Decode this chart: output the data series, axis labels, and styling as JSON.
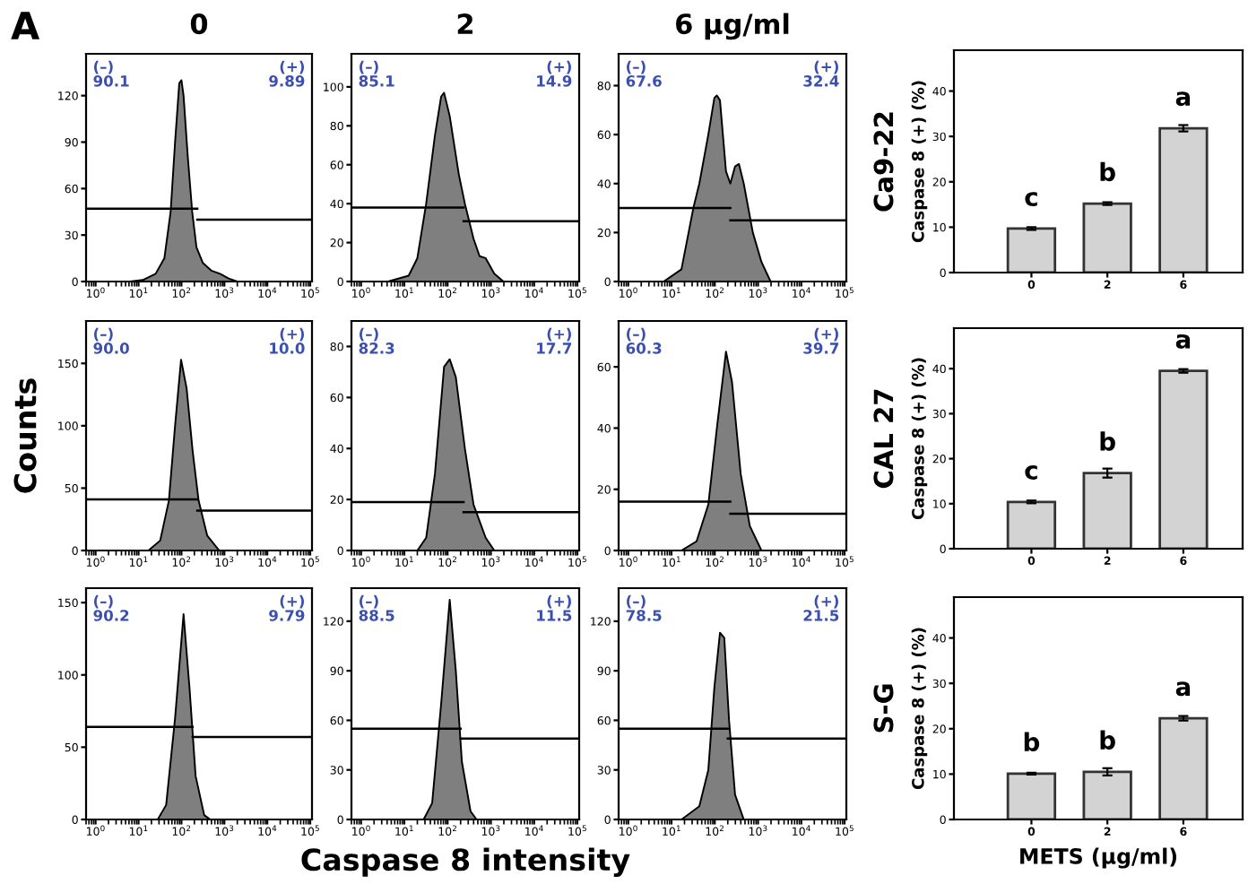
{
  "chart_data": [
    {
      "type": "area",
      "title": "0",
      "log": "x",
      "xlim": [
        0.6,
        110000
      ],
      "ylim": [
        0,
        147
      ],
      "xticks": [
        {
          "value": 1,
          "label": "10$^{0}$"
        },
        {
          "value": 10,
          "label": "10$^{1}$"
        },
        {
          "value": 100,
          "label": "10$^{2}$"
        },
        {
          "value": 1000,
          "label": "10$^{3}$"
        },
        {
          "value": 10000,
          "label": "10$^{4}$"
        },
        {
          "value": 100000,
          "label": "10$^{5}$"
        }
      ],
      "yticks": [
        0,
        30,
        60,
        90,
        120
      ],
      "annotations": [
        "(–)\n90.1",
        "(+)\n9.89",
        "A"
      ],
      "series": [
        {
          "type": "area",
          "color": "#7f7f7f",
          "x": [
            6.3,
            12.6,
            25,
            40,
            56,
            71,
            89,
            100,
            112,
            141,
            178,
            224,
            316,
            501,
            794,
            1259,
            1995
          ],
          "values": [
            0,
            1,
            5,
            15,
            45,
            90,
            128,
            130,
            120,
            80,
            45,
            22,
            12,
            7,
            5,
            2,
            0
          ]
        },
        {
          "type": "line",
          "color": "#000000",
          "x": [
            0.6,
            234
          ],
          "values": [
            47,
            47
          ]
        },
        {
          "type": "line",
          "color": "#000000",
          "x": [
            234,
            110000
          ],
          "values": [
            40,
            40
          ]
        }
      ]
    },
    {
      "type": "area",
      "title": "2",
      "log": "x",
      "xlim": [
        0.6,
        110000
      ],
      "ylim": [
        0,
        117
      ],
      "xticks": [
        {
          "value": 1,
          "label": "10$^{0}$"
        },
        {
          "value": 10,
          "label": "10$^{1}$"
        },
        {
          "value": 100,
          "label": "10$^{2}$"
        },
        {
          "value": 1000,
          "label": "10$^{3}$"
        },
        {
          "value": 10000,
          "label": "10$^{4}$"
        },
        {
          "value": 100000,
          "label": "10$^{5}$"
        }
      ],
      "yticks": [
        0,
        20,
        40,
        60,
        80,
        100
      ],
      "annotations": [
        "(–)\n85.1",
        "(+)\n14.9"
      ],
      "series": [
        {
          "type": "area",
          "color": "#7f7f7f",
          "x": [
            4.2,
            12.6,
            20,
            32,
            51,
            71,
            83,
            112,
            182,
            251,
            398,
            550,
            759,
            1202,
            1950
          ],
          "values": [
            0,
            3,
            12,
            40,
            75,
            95,
            97,
            85,
            55,
            40,
            22,
            13,
            12,
            4,
            0
          ]
        },
        {
          "type": "line",
          "color": "#000000",
          "x": [
            0.6,
            234
          ],
          "values": [
            38,
            38
          ]
        },
        {
          "type": "line",
          "color": "#000000",
          "x": [
            234,
            110000
          ],
          "values": [
            31,
            31
          ]
        }
      ]
    },
    {
      "type": "area",
      "title": "6 μg/ml",
      "log": "x",
      "xlim": [
        0.6,
        110000
      ],
      "ylim": [
        0,
        93
      ],
      "xticks": [
        {
          "value": 1,
          "label": "10$^{0}$"
        },
        {
          "value": 10,
          "label": "10$^{1}$"
        },
        {
          "value": 100,
          "label": "10$^{2}$"
        },
        {
          "value": 1000,
          "label": "10$^{3}$"
        },
        {
          "value": 10000,
          "label": "10$^{4}$"
        },
        {
          "value": 100000,
          "label": "10$^{5}$"
        }
      ],
      "yticks": [
        0,
        20,
        40,
        60,
        80
      ],
      "annotations": [
        "(–)\n67.6",
        "(+)\n32.4"
      ],
      "series": [
        {
          "type": "area",
          "color": "#7f7f7f",
          "x": [
            6.6,
            17,
            32,
            44,
            71,
            98,
            112,
            132,
            182,
            229,
            295,
            363,
            468,
            759,
            1202,
            1950
          ],
          "values": [
            0,
            5,
            30,
            40,
            60,
            75,
            76,
            74,
            45,
            40,
            47,
            48,
            40,
            20,
            8,
            0
          ]
        },
        {
          "type": "line",
          "color": "#000000",
          "x": [
            0.6,
            229
          ],
          "values": [
            30,
            30
          ]
        },
        {
          "type": "line",
          "color": "#000000",
          "x": [
            229,
            110000
          ],
          "values": [
            25,
            25
          ]
        }
      ]
    },
    {
      "type": "bar",
      "categories": [
        "0",
        "2",
        "6"
      ],
      "values": [
        9.7,
        15.2,
        31.8
      ],
      "errors": [
        0.3,
        0.3,
        0.7
      ],
      "color": "#d3d3d3",
      "ylabel": "Caspase 8 (+) (%)",
      "ylim": [
        0,
        49
      ],
      "yticks": [
        0,
        10,
        20,
        30,
        40
      ],
      "annotations": [
        "Ca9-22",
        {
          "text": "c",
          "x": "0",
          "y": 9.7
        },
        {
          "text": "b",
          "x": "2",
          "y": 15.2
        },
        {
          "text": "a",
          "x": "6",
          "y": 31.8
        }
      ]
    },
    {
      "type": "area",
      "ylabel": "Counts",
      "log": "x",
      "xlim": [
        0.6,
        110000
      ],
      "ylim": [
        0,
        184
      ],
      "xticks": [
        {
          "value": 1,
          "label": "10$^{0}$"
        },
        {
          "value": 10,
          "label": "10$^{1}$"
        },
        {
          "value": 100,
          "label": "10$^{2}$"
        },
        {
          "value": 1000,
          "label": "10$^{3}$"
        },
        {
          "value": 10000,
          "label": "10$^{4}$"
        },
        {
          "value": 100000,
          "label": "10$^{5}$"
        }
      ],
      "yticks": [
        0,
        50,
        100,
        150
      ],
      "annotations": [
        "(–)\n90.0",
        "(+)\n10.0"
      ],
      "series": [
        {
          "type": "area",
          "color": "#7f7f7f",
          "x": [
            17,
            32,
            51,
            71,
            98,
            132,
            182,
            251,
            398,
            759
          ],
          "values": [
            0,
            8,
            40,
            100,
            153,
            130,
            80,
            40,
            12,
            0
          ]
        },
        {
          "type": "line",
          "color": "#000000",
          "x": [
            0.6,
            234
          ],
          "values": [
            41,
            41
          ]
        },
        {
          "type": "line",
          "color": "#000000",
          "x": [
            234,
            110000
          ],
          "values": [
            32,
            32
          ]
        }
      ]
    },
    {
      "type": "area",
      "log": "x",
      "xlim": [
        0.6,
        110000
      ],
      "ylim": [
        0,
        90
      ],
      "xticks": [
        {
          "value": 1,
          "label": "10$^{0}$"
        },
        {
          "value": 10,
          "label": "10$^{1}$"
        },
        {
          "value": 100,
          "label": "10$^{2}$"
        },
        {
          "value": 1000,
          "label": "10$^{3}$"
        },
        {
          "value": 10000,
          "label": "10$^{4}$"
        },
        {
          "value": 100000,
          "label": "10$^{5}$"
        }
      ],
      "yticks": [
        0,
        20,
        40,
        60,
        80
      ],
      "annotations": [
        "(–)\n82.3",
        "(+)\n17.7"
      ],
      "series": [
        {
          "type": "area",
          "color": "#7f7f7f",
          "x": [
            20,
            32,
            51,
            83,
            112,
            155,
            251,
            398,
            759,
            1202
          ],
          "values": [
            0,
            5,
            30,
            72,
            75,
            68,
            40,
            18,
            5,
            0
          ]
        },
        {
          "type": "line",
          "color": "#000000",
          "x": [
            0.6,
            234
          ],
          "values": [
            19,
            19
          ]
        },
        {
          "type": "line",
          "color": "#000000",
          "x": [
            234,
            110000
          ],
          "values": [
            15,
            15
          ]
        }
      ]
    },
    {
      "type": "area",
      "log": "x",
      "xlim": [
        0.6,
        110000
      ],
      "ylim": [
        0,
        75
      ],
      "xticks": [
        {
          "value": 1,
          "label": "10$^{0}$"
        },
        {
          "value": 10,
          "label": "10$^{1}$"
        },
        {
          "value": 100,
          "label": "10$^{2}$"
        },
        {
          "value": 1000,
          "label": "10$^{3}$"
        },
        {
          "value": 10000,
          "label": "10$^{4}$"
        },
        {
          "value": 100000,
          "label": "10$^{5}$"
        }
      ],
      "yticks": [
        0,
        20,
        40,
        60
      ],
      "annotations": [
        "(–)\n60.3",
        "(+)\n39.7"
      ],
      "series": [
        {
          "type": "area",
          "color": "#7f7f7f",
          "x": [
            17,
            38,
            71,
            112,
            182,
            251,
            398,
            646,
            1202
          ],
          "values": [
            0,
            3,
            15,
            40,
            65,
            55,
            25,
            8,
            0
          ]
        },
        {
          "type": "line",
          "color": "#000000",
          "x": [
            0.6,
            229
          ],
          "values": [
            16,
            16
          ]
        },
        {
          "type": "line",
          "color": "#000000",
          "x": [
            229,
            110000
          ],
          "values": [
            12,
            12
          ]
        }
      ]
    },
    {
      "type": "bar",
      "categories": [
        "0",
        "2",
        "6"
      ],
      "values": [
        10.4,
        16.8,
        39.5
      ],
      "errors": [
        0.3,
        1.0,
        0.4
      ],
      "color": "#d3d3d3",
      "ylabel": "Caspase 8 (+) (%)",
      "ylim": [
        0,
        49
      ],
      "yticks": [
        0,
        10,
        20,
        30,
        40
      ],
      "annotations": [
        "CAL 27",
        {
          "text": "c",
          "x": "0",
          "y": 10.4
        },
        {
          "text": "b",
          "x": "2",
          "y": 16.8
        },
        {
          "text": "a",
          "x": "6",
          "y": 39.5
        }
      ]
    },
    {
      "type": "area",
      "log": "x",
      "xlim": [
        0.6,
        110000
      ],
      "ylim": [
        0,
        160
      ],
      "xticks": [
        {
          "value": 1,
          "label": "10$^{0}$"
        },
        {
          "value": 10,
          "label": "10$^{1}$"
        },
        {
          "value": 100,
          "label": "10$^{2}$"
        },
        {
          "value": 1000,
          "label": "10$^{3}$"
        },
        {
          "value": 10000,
          "label": "10$^{4}$"
        },
        {
          "value": 100000,
          "label": "10$^{5}$"
        }
      ],
      "yticks": [
        0,
        50,
        100,
        150
      ],
      "annotations": [
        "(–)\n90.2",
        "(+)\n9.79"
      ],
      "series": [
        {
          "type": "area",
          "color": "#7f7f7f",
          "x": [
            28,
            44,
            71,
            112,
            155,
            214,
            339,
            468
          ],
          "values": [
            0,
            10,
            70,
            142,
            90,
            30,
            3,
            0
          ]
        },
        {
          "type": "line",
          "color": "#000000",
          "x": [
            0.6,
            182
          ],
          "values": [
            64,
            64
          ]
        },
        {
          "type": "line",
          "color": "#000000",
          "x": [
            182,
            110000
          ],
          "values": [
            57,
            57
          ]
        }
      ]
    },
    {
      "type": "area",
      "xlabel": "Caspase 8 intensity",
      "log": "x",
      "xlim": [
        0.6,
        110000
      ],
      "ylim": [
        0,
        140
      ],
      "xticks": [
        {
          "value": 1,
          "label": "10$^{0}$"
        },
        {
          "value": 10,
          "label": "10$^{1}$"
        },
        {
          "value": 100,
          "label": "10$^{2}$"
        },
        {
          "value": 1000,
          "label": "10$^{3}$"
        },
        {
          "value": 10000,
          "label": "10$^{4}$"
        },
        {
          "value": 100000,
          "label": "10$^{5}$"
        }
      ],
      "yticks": [
        0,
        30,
        60,
        90,
        120
      ],
      "annotations": [
        "(–)\n88.5",
        "(+)\n11.5"
      ],
      "series": [
        {
          "type": "area",
          "color": "#7f7f7f",
          "x": [
            28,
            44,
            71,
            112,
            155,
            214,
            339,
            468
          ],
          "values": [
            0,
            10,
            70,
            133,
            90,
            35,
            5,
            0
          ]
        },
        {
          "type": "line",
          "color": "#000000",
          "x": [
            0.6,
            200
          ],
          "values": [
            55,
            55
          ]
        },
        {
          "type": "line",
          "color": "#000000",
          "x": [
            200,
            110000
          ],
          "values": [
            49,
            49
          ]
        }
      ]
    },
    {
      "type": "area",
      "log": "x",
      "xlim": [
        0.6,
        110000
      ],
      "ylim": [
        0,
        140
      ],
      "xticks": [
        {
          "value": 1,
          "label": "10$^{0}$"
        },
        {
          "value": 10,
          "label": "10$^{1}$"
        },
        {
          "value": 100,
          "label": "10$^{2}$"
        },
        {
          "value": 1000,
          "label": "10$^{3}$"
        },
        {
          "value": 10000,
          "label": "10$^{4}$"
        },
        {
          "value": 100000,
          "label": "10$^{5}$"
        }
      ],
      "yticks": [
        0,
        30,
        60,
        90,
        120
      ],
      "annotations": [
        "(–)\n78.5",
        "(+)\n21.5"
      ],
      "series": [
        {
          "type": "area",
          "color": "#7f7f7f",
          "x": [
            17,
            44,
            71,
            98,
            132,
            166,
            214,
            295,
            468
          ],
          "values": [
            0,
            8,
            30,
            80,
            113,
            110,
            60,
            15,
            0
          ]
        },
        {
          "type": "line",
          "color": "#000000",
          "x": [
            0.6,
            200
          ],
          "values": [
            55,
            55
          ]
        },
        {
          "type": "line",
          "color": "#000000",
          "x": [
            200,
            110000
          ],
          "values": [
            49,
            49
          ]
        }
      ]
    },
    {
      "type": "bar",
      "categories": [
        "0",
        "2",
        "6"
      ],
      "values": [
        10.1,
        10.5,
        22.3
      ],
      "errors": [
        0.2,
        0.8,
        0.5
      ],
      "color": "#d3d3d3",
      "xlabel": "METS (μg/ml)",
      "ylabel": "Caspase 8 (+) (%)",
      "ylim": [
        0,
        49
      ],
      "yticks": [
        0,
        10,
        20,
        30,
        40
      ],
      "annotations": [
        "S-G",
        {
          "text": "b",
          "x": "0",
          "y": 10.1
        },
        {
          "text": "b",
          "x": "2",
          "y": 10.5
        },
        {
          "text": "a",
          "x": "6",
          "y": 22.3
        }
      ]
    }
  ]
}
